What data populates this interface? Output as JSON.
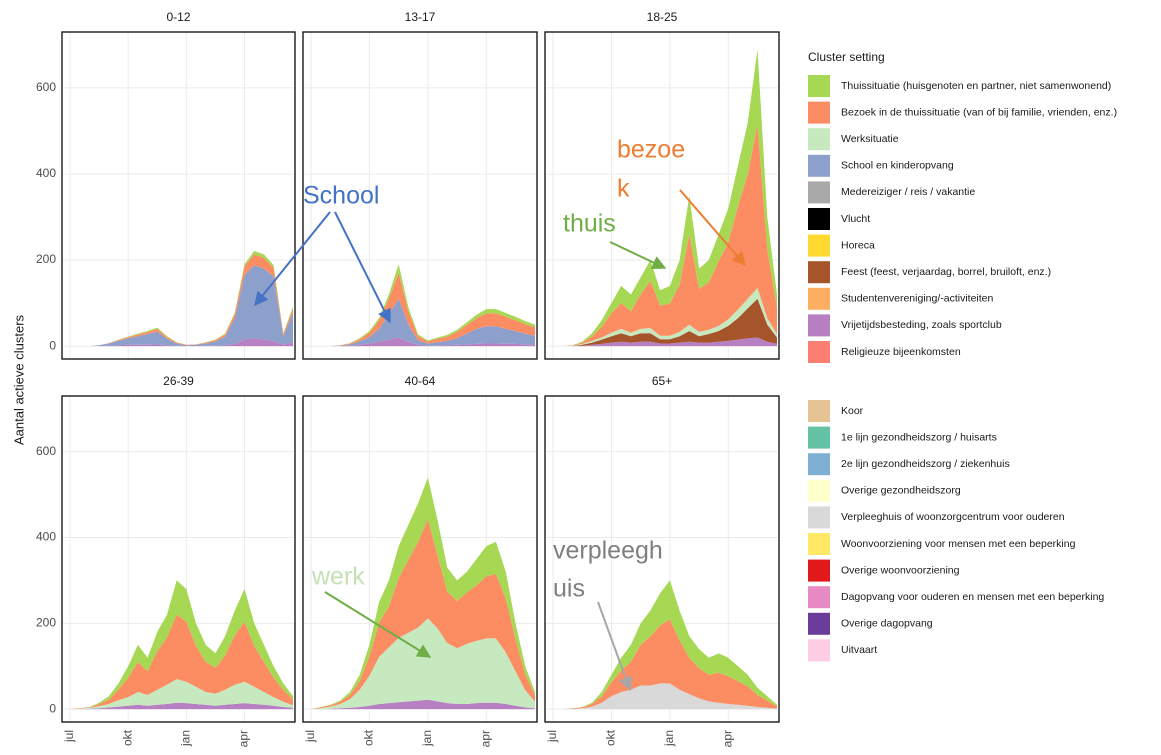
{
  "chart_data": [
    {
      "type": "area",
      "title": "0-12",
      "ylim": [
        -30,
        730
      ],
      "yticks": [
        0,
        200,
        400,
        600
      ],
      "grid": true,
      "series": [
        {
          "name": "Vrijetijdsbesteding, zoals sportclub",
          "color": "#b780c2",
          "values": [
            0,
            0,
            0,
            0,
            1,
            2,
            3,
            3,
            3,
            4,
            2,
            1,
            0,
            0,
            1,
            1,
            2,
            5,
            15,
            18,
            15,
            12,
            3,
            8
          ]
        },
        {
          "name": "School en kinderopvang",
          "color": "#8da0cb",
          "values": [
            0,
            0,
            0,
            2,
            5,
            10,
            15,
            20,
            25,
            30,
            15,
            5,
            2,
            3,
            5,
            10,
            20,
            60,
            150,
            170,
            165,
            150,
            20,
            70
          ]
        },
        {
          "name": "Bezoek in de thuissituatie (van of bij familie, vrienden, enz.)",
          "color": "#fc8d62",
          "values": [
            0,
            0,
            0,
            0,
            1,
            2,
            3,
            4,
            5,
            6,
            4,
            2,
            1,
            1,
            2,
            3,
            5,
            10,
            20,
            25,
            25,
            20,
            5,
            10
          ]
        },
        {
          "name": "Thuissituatie (huisgenoten en partner, niet samenwonend)",
          "color": "#a6d854",
          "values": [
            0,
            0,
            0,
            0,
            0,
            1,
            1,
            2,
            2,
            3,
            2,
            1,
            0,
            0,
            1,
            1,
            2,
            3,
            5,
            8,
            8,
            6,
            2,
            4
          ]
        }
      ]
    },
    {
      "type": "area",
      "title": "13-17",
      "ylim": [
        -30,
        730
      ],
      "yticks": [
        0,
        200,
        400,
        600
      ],
      "grid": true,
      "series": [
        {
          "name": "Vrijetijdsbesteding, zoals sportclub",
          "color": "#b780c2",
          "values": [
            0,
            0,
            0,
            0,
            1,
            3,
            6,
            10,
            15,
            20,
            10,
            3,
            1,
            1,
            2,
            3,
            4,
            5,
            6,
            6,
            5,
            5,
            4,
            4
          ]
        },
        {
          "name": "School en kinderopvang",
          "color": "#8da0cb",
          "values": [
            0,
            0,
            0,
            1,
            3,
            8,
            15,
            30,
            60,
            90,
            40,
            10,
            5,
            8,
            10,
            15,
            25,
            35,
            40,
            40,
            35,
            30,
            25,
            20
          ]
        },
        {
          "name": "Bezoek in de thuissituatie (van of bij familie, vrienden, enz.)",
          "color": "#fc8d62",
          "values": [
            0,
            0,
            0,
            1,
            2,
            5,
            10,
            20,
            35,
            60,
            30,
            10,
            5,
            8,
            10,
            15,
            20,
            25,
            30,
            30,
            28,
            25,
            22,
            20
          ]
        },
        {
          "name": "Thuissituatie (huisgenoten en partner, niet samenwonend)",
          "color": "#a6d854",
          "values": [
            0,
            0,
            0,
            0,
            1,
            2,
            4,
            6,
            10,
            20,
            10,
            4,
            2,
            3,
            4,
            5,
            6,
            8,
            10,
            10,
            9,
            8,
            7,
            6
          ]
        }
      ]
    },
    {
      "type": "area",
      "title": "18-25",
      "ylim": [
        -30,
        730
      ],
      "yticks": [
        0,
        200,
        400,
        600
      ],
      "grid": true,
      "series": [
        {
          "name": "Vrijetijdsbesteding, zoals sportclub",
          "color": "#b780c2",
          "values": [
            0,
            0,
            0,
            1,
            3,
            5,
            8,
            10,
            8,
            10,
            10,
            6,
            6,
            8,
            10,
            8,
            8,
            10,
            12,
            15,
            18,
            20,
            10,
            5
          ]
        },
        {
          "name": "Feest (feest, verjaardag, borrel, bruiloft, enz.)",
          "color": "#a6542a",
          "values": [
            0,
            0,
            0,
            2,
            5,
            10,
            15,
            20,
            15,
            20,
            20,
            10,
            10,
            15,
            25,
            15,
            20,
            25,
            35,
            50,
            70,
            90,
            40,
            15
          ]
        },
        {
          "name": "Werksituatie",
          "color": "#c7e9c0",
          "values": [
            0,
            0,
            1,
            2,
            4,
            5,
            8,
            10,
            8,
            10,
            12,
            8,
            8,
            10,
            15,
            10,
            10,
            12,
            15,
            20,
            22,
            25,
            15,
            8
          ]
        },
        {
          "name": "Bezoek in de thuissituatie (van of bij familie, vrienden, enz.)",
          "color": "#fc8d62",
          "values": [
            0,
            0,
            1,
            3,
            10,
            25,
            45,
            60,
            50,
            80,
            110,
            70,
            75,
            110,
            210,
            100,
            110,
            150,
            180,
            240,
            290,
            380,
            160,
            60
          ]
        },
        {
          "name": "Thuissituatie (huisgenoten en partner, niet samenwonend)",
          "color": "#a6d854",
          "values": [
            0,
            0,
            0,
            2,
            8,
            15,
            24,
            40,
            39,
            40,
            48,
            36,
            41,
            57,
            90,
            47,
            52,
            63,
            78,
            95,
            120,
            175,
            75,
            32
          ]
        }
      ]
    },
    {
      "type": "area",
      "title": "26-39",
      "ylim": [
        -30,
        730
      ],
      "yticks": [
        0,
        200,
        400,
        600
      ],
      "grid": true,
      "categories": [
        "jul",
        null,
        null,
        null,
        null,
        null,
        "okt",
        null,
        null,
        null,
        null,
        null,
        "jan",
        null,
        null,
        null,
        null,
        null,
        "apr",
        null,
        null,
        null,
        null,
        null
      ],
      "series": [
        {
          "name": "Vrijetijdsbesteding, zoals sportclub",
          "color": "#b780c2",
          "values": [
            0,
            0,
            1,
            2,
            4,
            6,
            8,
            10,
            8,
            10,
            12,
            15,
            14,
            12,
            10,
            8,
            10,
            12,
            14,
            12,
            10,
            8,
            5,
            3
          ]
        },
        {
          "name": "Werksituatie",
          "color": "#c7e9c0",
          "values": [
            0,
            1,
            2,
            5,
            8,
            15,
            20,
            30,
            25,
            35,
            45,
            55,
            50,
            40,
            30,
            28,
            35,
            45,
            50,
            40,
            30,
            20,
            12,
            6
          ]
        },
        {
          "name": "Bezoek in de thuissituatie (van of bij familie, vrienden, enz.)",
          "color": "#fc8d62",
          "values": [
            0,
            1,
            1,
            5,
            10,
            25,
            45,
            70,
            55,
            90,
            110,
            150,
            140,
            95,
            70,
            60,
            80,
            115,
            140,
            95,
            70,
            45,
            28,
            14
          ]
        },
        {
          "name": "Thuissituatie (huisgenoten en partner, niet samenwonend)",
          "color": "#a6d854",
          "values": [
            0,
            0,
            1,
            3,
            8,
            14,
            27,
            40,
            32,
            45,
            53,
            80,
            76,
            53,
            40,
            34,
            45,
            58,
            76,
            53,
            40,
            27,
            15,
            7
          ]
        }
      ]
    },
    {
      "type": "area",
      "title": "40-64",
      "ylim": [
        -30,
        730
      ],
      "yticks": [
        0,
        200,
        400,
        600
      ],
      "grid": true,
      "categories": [
        "jul",
        null,
        null,
        null,
        null,
        null,
        "okt",
        null,
        null,
        null,
        null,
        null,
        "jan",
        null,
        null,
        null,
        null,
        null,
        "apr",
        null,
        null,
        null,
        null,
        null
      ],
      "series": [
        {
          "name": "Vrijetijdsbesteding, zoals sportclub",
          "color": "#b780c2",
          "values": [
            0,
            0,
            1,
            2,
            3,
            5,
            8,
            12,
            14,
            16,
            18,
            20,
            22,
            18,
            14,
            12,
            12,
            14,
            15,
            15,
            12,
            8,
            4,
            2
          ]
        },
        {
          "name": "Werksituatie",
          "color": "#c7e9c0",
          "values": [
            0,
            2,
            5,
            10,
            20,
            40,
            70,
            110,
            130,
            150,
            160,
            170,
            190,
            170,
            140,
            130,
            140,
            145,
            150,
            150,
            120,
            80,
            40,
            15
          ]
        },
        {
          "name": "Bezoek in de thuissituatie (van of bij familie, vrienden, enz.)",
          "color": "#fc8d62",
          "values": [
            0,
            2,
            3,
            5,
            10,
            20,
            45,
            80,
            95,
            140,
            170,
            200,
            230,
            170,
            120,
            110,
            120,
            130,
            145,
            150,
            125,
            75,
            36,
            15
          ]
        },
        {
          "name": "Thuissituatie (huisgenoten en partner, niet samenwonend)",
          "color": "#a6d854",
          "values": [
            0,
            1,
            1,
            3,
            7,
            15,
            27,
            48,
            61,
            74,
            82,
            90,
            98,
            82,
            56,
            48,
            48,
            61,
            70,
            75,
            63,
            37,
            20,
            8
          ]
        }
      ]
    },
    {
      "type": "area",
      "title": "65+",
      "ylim": [
        -30,
        730
      ],
      "yticks": [
        0,
        200,
        400,
        600
      ],
      "grid": true,
      "categories": [
        "jul",
        null,
        null,
        null,
        null,
        null,
        "okt",
        null,
        null,
        null,
        null,
        null,
        "jan",
        null,
        null,
        null,
        null,
        null,
        "apr",
        null,
        null,
        null,
        null,
        null
      ],
      "series": [
        {
          "name": "Verpleeghuis of woonzorgcentrum voor ouderen",
          "color": "#d9d9d9",
          "values": [
            0,
            0,
            1,
            2,
            6,
            15,
            30,
            40,
            45,
            55,
            55,
            60,
            60,
            45,
            35,
            25,
            18,
            15,
            12,
            10,
            8,
            5,
            3,
            1
          ]
        },
        {
          "name": "Bezoek in de thuissituatie (van of bij familie, vrienden, enz.)",
          "color": "#fc8d62",
          "values": [
            0,
            0,
            1,
            2,
            6,
            15,
            32,
            50,
            65,
            95,
            115,
            135,
            150,
            115,
            85,
            70,
            62,
            70,
            65,
            55,
            45,
            28,
            17,
            6
          ]
        },
        {
          "name": "Thuissituatie (huisgenoten en partner, niet samenwonend)",
          "color": "#a6d854",
          "values": [
            0,
            0,
            0,
            1,
            3,
            10,
            18,
            30,
            40,
            50,
            60,
            75,
            90,
            70,
            50,
            45,
            40,
            45,
            43,
            35,
            27,
            17,
            10,
            3
          ]
        }
      ]
    }
  ],
  "y_label": "Aantal actieve clusters",
  "legend": {
    "title": "Cluster setting",
    "items": [
      {
        "name": "Thuissituatie (huisgenoten en partner, niet samenwonend)",
        "color": "#a6d854"
      },
      {
        "name": "Bezoek in de thuissituatie (van of bij familie, vrienden, enz.)",
        "color": "#fc8d62"
      },
      {
        "name": "Werksituatie",
        "color": "#c7e9c0"
      },
      {
        "name": "School en kinderopvang",
        "color": "#8da0cb"
      },
      {
        "name": "Medereiziger / reis / vakantie",
        "color": "#a9a9a9"
      },
      {
        "name": "Vlucht",
        "color": "#000000"
      },
      {
        "name": "Horeca",
        "color": "#ffd92f"
      },
      {
        "name": "Feest (feest, verjaardag, borrel, bruiloft, enz.)",
        "color": "#a6542a"
      },
      {
        "name": "Studentenvereniging/-activiteiten",
        "color": "#fdae61"
      },
      {
        "name": "Vrijetijdsbesteding, zoals sportclub",
        "color": "#b780c2"
      },
      {
        "name": "Religieuze bijeenkomsten",
        "color": "#fb8072"
      },
      {
        "name": "Koor",
        "color": "#e5c494"
      },
      {
        "name": "1e lijn gezondheidszorg / huisarts",
        "color": "#66c2a5"
      },
      {
        "name": "2e lijn gezondheidszorg / ziekenhuis",
        "color": "#7fb0d3"
      },
      {
        "name": "Overige gezondheidszorg",
        "color": "#ffffcc"
      },
      {
        "name": "Verpleeghuis of woonzorgcentrum voor ouderen",
        "color": "#d9d9d9"
      },
      {
        "name": "Woonvoorziening voor mensen met een beperking",
        "color": "#ffe866"
      },
      {
        "name": "Overige woonvoorziening",
        "color": "#e31a1c"
      },
      {
        "name": "Dagopvang voor ouderen en mensen met een beperking",
        "color": "#e78ac3"
      },
      {
        "name": "Overige dagopvang",
        "color": "#6a3d9a"
      },
      {
        "name": "Uitvaart",
        "color": "#fccde5"
      }
    ]
  },
  "annotations": [
    {
      "lines": [
        "School"
      ],
      "color": "#4472c4"
    },
    {
      "lines": [
        "bezoe",
        "k"
      ],
      "color": "#ed7d31"
    },
    {
      "lines": [
        "thuis"
      ],
      "color": "#70ad47"
    },
    {
      "lines": [
        "werk"
      ],
      "color": "#c5e0b4"
    },
    {
      "lines": [
        "verpleegh",
        "uis"
      ],
      "color": "#7f7f7f"
    }
  ]
}
